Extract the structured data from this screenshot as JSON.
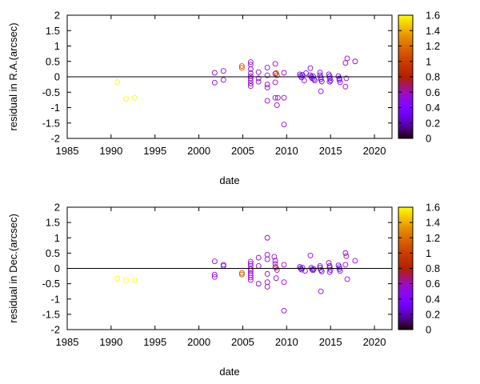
{
  "chart_data": [
    {
      "type": "scatter",
      "xlabel": "date",
      "ylabel": "residual in R.A.(arcsec)",
      "xlim": [
        1985,
        2022
      ],
      "ylim": [
        -2,
        2
      ],
      "x_ticks": [
        1985,
        1990,
        1995,
        2000,
        2005,
        2010,
        2015,
        2020
      ],
      "y_ticks": [
        -2,
        -1.5,
        -1,
        -0.5,
        0,
        0.5,
        1,
        1.5,
        2
      ],
      "zero_line": true,
      "grid": false,
      "colorbar": {
        "min": 0,
        "max": 1.6,
        "ticks": [
          0,
          0.2,
          0.4,
          0.6,
          0.8,
          1,
          1.2,
          1.4,
          1.6
        ]
      },
      "points": [
        {
          "x": 1990.7,
          "y": -0.17,
          "c": 1.6
        },
        {
          "x": 1991.7,
          "y": -0.72,
          "c": 1.6
        },
        {
          "x": 1992.7,
          "y": -0.68,
          "c": 1.6
        },
        {
          "x": 2001.8,
          "y": 0.13,
          "c": 0.55
        },
        {
          "x": 2001.8,
          "y": -0.19,
          "c": 0.55
        },
        {
          "x": 2002.8,
          "y": 0.19,
          "c": 0.55
        },
        {
          "x": 2002.8,
          "y": -0.1,
          "c": 0.55
        },
        {
          "x": 2004.9,
          "y": 0.35,
          "c": 1.1
        },
        {
          "x": 2004.9,
          "y": 0.29,
          "c": 1.1
        },
        {
          "x": 2005.9,
          "y": 0.48,
          "c": 0.55
        },
        {
          "x": 2005.9,
          "y": 0.4,
          "c": 0.55
        },
        {
          "x": 2005.9,
          "y": 0.25,
          "c": 0.55
        },
        {
          "x": 2005.9,
          "y": 0.12,
          "c": 0.55
        },
        {
          "x": 2005.9,
          "y": 0.02,
          "c": 0.55
        },
        {
          "x": 2005.9,
          "y": -0.05,
          "c": 0.55
        },
        {
          "x": 2005.9,
          "y": -0.13,
          "c": 0.55
        },
        {
          "x": 2005.9,
          "y": -0.22,
          "c": 0.55
        },
        {
          "x": 2005.9,
          "y": -0.3,
          "c": 0.55
        },
        {
          "x": 2006.8,
          "y": 0.15,
          "c": 0.55
        },
        {
          "x": 2006.8,
          "y": -0.05,
          "c": 0.55
        },
        {
          "x": 2006.8,
          "y": -0.16,
          "c": 0.55
        },
        {
          "x": 2007.8,
          "y": 0.3,
          "c": 0.55
        },
        {
          "x": 2007.8,
          "y": 0.05,
          "c": 0.55
        },
        {
          "x": 2007.8,
          "y": -0.25,
          "c": 0.55
        },
        {
          "x": 2007.8,
          "y": -0.35,
          "c": 0.55
        },
        {
          "x": 2007.8,
          "y": -0.78,
          "c": 0.55
        },
        {
          "x": 2008.7,
          "y": 0.42,
          "c": 0.55
        },
        {
          "x": 2008.7,
          "y": 0.1,
          "c": 0.55
        },
        {
          "x": 2008.7,
          "y": -0.18,
          "c": 0.55
        },
        {
          "x": 2008.7,
          "y": -0.68,
          "c": 0.55
        },
        {
          "x": 2008.8,
          "y": 0.12,
          "c": 1.0
        },
        {
          "x": 2008.9,
          "y": 0.05,
          "c": 1.0
        },
        {
          "x": 2009.0,
          "y": -0.68,
          "c": 0.55
        },
        {
          "x": 2008.9,
          "y": -0.92,
          "c": 0.55
        },
        {
          "x": 2009.7,
          "y": 0.13,
          "c": 0.55
        },
        {
          "x": 2009.7,
          "y": -0.68,
          "c": 0.55
        },
        {
          "x": 2009.7,
          "y": -1.55,
          "c": 0.55
        },
        {
          "x": 2011.5,
          "y": 0.08,
          "c": 0.3
        },
        {
          "x": 2011.6,
          "y": 0.03,
          "c": 0.3
        },
        {
          "x": 2011.7,
          "y": -0.02,
          "c": 0.3
        },
        {
          "x": 2011.8,
          "y": 0.06,
          "c": 0.3
        },
        {
          "x": 2012.0,
          "y": -0.12,
          "c": 0.45
        },
        {
          "x": 2012.2,
          "y": 0.12,
          "c": 0.45
        },
        {
          "x": 2012.7,
          "y": 0.28,
          "c": 0.45
        },
        {
          "x": 2012.7,
          "y": 0.05,
          "c": 0.3
        },
        {
          "x": 2012.8,
          "y": 0.0,
          "c": 0.3
        },
        {
          "x": 2012.9,
          "y": -0.05,
          "c": 0.3
        },
        {
          "x": 2013.0,
          "y": 0.02,
          "c": 0.3
        },
        {
          "x": 2013.1,
          "y": -0.08,
          "c": 0.3
        },
        {
          "x": 2013.2,
          "y": -0.12,
          "c": 0.45
        },
        {
          "x": 2013.8,
          "y": 0.14,
          "c": 0.45
        },
        {
          "x": 2013.8,
          "y": 0.05,
          "c": 0.3
        },
        {
          "x": 2013.9,
          "y": -0.02,
          "c": 0.3
        },
        {
          "x": 2013.9,
          "y": -0.08,
          "c": 0.3
        },
        {
          "x": 2014.0,
          "y": -0.15,
          "c": 0.3
        },
        {
          "x": 2013.9,
          "y": -0.47,
          "c": 0.45
        },
        {
          "x": 2014.8,
          "y": 0.08,
          "c": 0.3
        },
        {
          "x": 2014.9,
          "y": 0.02,
          "c": 0.3
        },
        {
          "x": 2014.9,
          "y": -0.05,
          "c": 0.3
        },
        {
          "x": 2015.0,
          "y": -0.12,
          "c": 0.3
        },
        {
          "x": 2014.9,
          "y": -0.16,
          "c": 0.45
        },
        {
          "x": 2015.9,
          "y": 0.02,
          "c": 0.3
        },
        {
          "x": 2016.0,
          "y": -0.05,
          "c": 0.3
        },
        {
          "x": 2016.0,
          "y": -0.1,
          "c": 0.3
        },
        {
          "x": 2016.1,
          "y": -0.18,
          "c": 0.45
        },
        {
          "x": 2016.7,
          "y": 0.45,
          "c": 0.55
        },
        {
          "x": 2016.8,
          "y": -0.05,
          "c": 0.55
        },
        {
          "x": 2016.7,
          "y": -0.32,
          "c": 0.55
        },
        {
          "x": 2016.9,
          "y": 0.6,
          "c": 0.55
        },
        {
          "x": 2017.8,
          "y": 0.5,
          "c": 0.55
        }
      ]
    },
    {
      "type": "scatter",
      "xlabel": "date",
      "ylabel": "residual in Dec.(arcsec)",
      "xlim": [
        1985,
        2022
      ],
      "ylim": [
        -2,
        2
      ],
      "x_ticks": [
        1985,
        1990,
        1995,
        2000,
        2005,
        2010,
        2015,
        2020
      ],
      "y_ticks": [
        -2,
        -1.5,
        -1,
        -0.5,
        0,
        0.5,
        1,
        1.5,
        2
      ],
      "zero_line": true,
      "grid": false,
      "colorbar": {
        "min": 0,
        "max": 1.6,
        "ticks": [
          0,
          0.2,
          0.4,
          0.6,
          0.8,
          1,
          1.2,
          1.4,
          1.6
        ]
      },
      "points": [
        {
          "x": 1990.7,
          "y": -0.33,
          "c": 1.6
        },
        {
          "x": 1991.7,
          "y": -0.38,
          "c": 1.6
        },
        {
          "x": 1992.7,
          "y": -0.38,
          "c": 1.6
        },
        {
          "x": 2001.8,
          "y": 0.23,
          "c": 0.55
        },
        {
          "x": 2001.8,
          "y": -0.2,
          "c": 0.55
        },
        {
          "x": 2001.8,
          "y": -0.28,
          "c": 0.55
        },
        {
          "x": 2002.8,
          "y": 0.12,
          "c": 0.55
        },
        {
          "x": 2002.8,
          "y": 0.08,
          "c": 0.55
        },
        {
          "x": 2004.9,
          "y": -0.15,
          "c": 1.1
        },
        {
          "x": 2004.9,
          "y": -0.2,
          "c": 1.1
        },
        {
          "x": 2005.9,
          "y": 0.22,
          "c": 0.55
        },
        {
          "x": 2005.9,
          "y": 0.15,
          "c": 0.55
        },
        {
          "x": 2005.9,
          "y": 0.08,
          "c": 0.55
        },
        {
          "x": 2005.9,
          "y": -0.02,
          "c": 0.55
        },
        {
          "x": 2005.9,
          "y": -0.08,
          "c": 0.55
        },
        {
          "x": 2005.9,
          "y": -0.15,
          "c": 0.55
        },
        {
          "x": 2005.9,
          "y": -0.22,
          "c": 0.55
        },
        {
          "x": 2005.9,
          "y": -0.3,
          "c": 0.55
        },
        {
          "x": 2005.9,
          "y": -0.38,
          "c": 0.55
        },
        {
          "x": 2006.8,
          "y": 0.35,
          "c": 0.55
        },
        {
          "x": 2006.8,
          "y": 0.08,
          "c": 0.55
        },
        {
          "x": 2006.8,
          "y": -0.5,
          "c": 0.55
        },
        {
          "x": 2007.8,
          "y": 1.0,
          "c": 0.55
        },
        {
          "x": 2007.8,
          "y": 0.45,
          "c": 0.55
        },
        {
          "x": 2007.8,
          "y": 0.3,
          "c": 0.55
        },
        {
          "x": 2007.8,
          "y": -0.18,
          "c": 0.55
        },
        {
          "x": 2007.8,
          "y": -0.45,
          "c": 0.55
        },
        {
          "x": 2007.8,
          "y": -0.6,
          "c": 0.55
        },
        {
          "x": 2008.6,
          "y": 0.38,
          "c": 0.55
        },
        {
          "x": 2008.7,
          "y": 0.25,
          "c": 0.55
        },
        {
          "x": 2008.7,
          "y": 0.15,
          "c": 0.55
        },
        {
          "x": 2008.7,
          "y": 0.05,
          "c": 0.55
        },
        {
          "x": 2008.8,
          "y": 0.02,
          "c": 1.0
        },
        {
          "x": 2008.9,
          "y": -0.05,
          "c": 0.55
        },
        {
          "x": 2008.8,
          "y": -0.32,
          "c": 0.55
        },
        {
          "x": 2009.7,
          "y": 0.12,
          "c": 0.55
        },
        {
          "x": 2009.7,
          "y": -0.45,
          "c": 0.55
        },
        {
          "x": 2009.7,
          "y": -1.38,
          "c": 0.55
        },
        {
          "x": 2011.5,
          "y": 0.05,
          "c": 0.3
        },
        {
          "x": 2011.6,
          "y": 0.0,
          "c": 0.3
        },
        {
          "x": 2011.7,
          "y": -0.04,
          "c": 0.3
        },
        {
          "x": 2011.8,
          "y": 0.02,
          "c": 0.3
        },
        {
          "x": 2012.1,
          "y": -0.08,
          "c": 0.45
        },
        {
          "x": 2012.7,
          "y": 0.42,
          "c": 0.45
        },
        {
          "x": 2012.8,
          "y": 0.02,
          "c": 0.3
        },
        {
          "x": 2012.9,
          "y": -0.03,
          "c": 0.3
        },
        {
          "x": 2013.0,
          "y": -0.06,
          "c": 0.3
        },
        {
          "x": 2013.1,
          "y": -0.02,
          "c": 0.3
        },
        {
          "x": 2013.8,
          "y": 0.08,
          "c": 0.45
        },
        {
          "x": 2013.8,
          "y": 0.02,
          "c": 0.3
        },
        {
          "x": 2013.9,
          "y": -0.05,
          "c": 0.3
        },
        {
          "x": 2014.0,
          "y": -0.1,
          "c": 0.3
        },
        {
          "x": 2013.9,
          "y": -0.75,
          "c": 0.45
        },
        {
          "x": 2014.8,
          "y": 0.18,
          "c": 0.45
        },
        {
          "x": 2014.9,
          "y": 0.08,
          "c": 0.3
        },
        {
          "x": 2014.9,
          "y": 0.02,
          "c": 0.3
        },
        {
          "x": 2015.0,
          "y": -0.05,
          "c": 0.3
        },
        {
          "x": 2014.9,
          "y": -0.12,
          "c": 0.45
        },
        {
          "x": 2015.9,
          "y": 0.1,
          "c": 0.3
        },
        {
          "x": 2016.0,
          "y": 0.04,
          "c": 0.3
        },
        {
          "x": 2016.0,
          "y": -0.02,
          "c": 0.3
        },
        {
          "x": 2016.1,
          "y": -0.08,
          "c": 0.45
        },
        {
          "x": 2016.7,
          "y": 0.5,
          "c": 0.55
        },
        {
          "x": 2016.8,
          "y": 0.4,
          "c": 0.55
        },
        {
          "x": 2016.7,
          "y": 0.12,
          "c": 0.55
        },
        {
          "x": 2016.9,
          "y": -0.35,
          "c": 0.55
        },
        {
          "x": 2017.8,
          "y": 0.25,
          "c": 0.55
        }
      ]
    }
  ]
}
